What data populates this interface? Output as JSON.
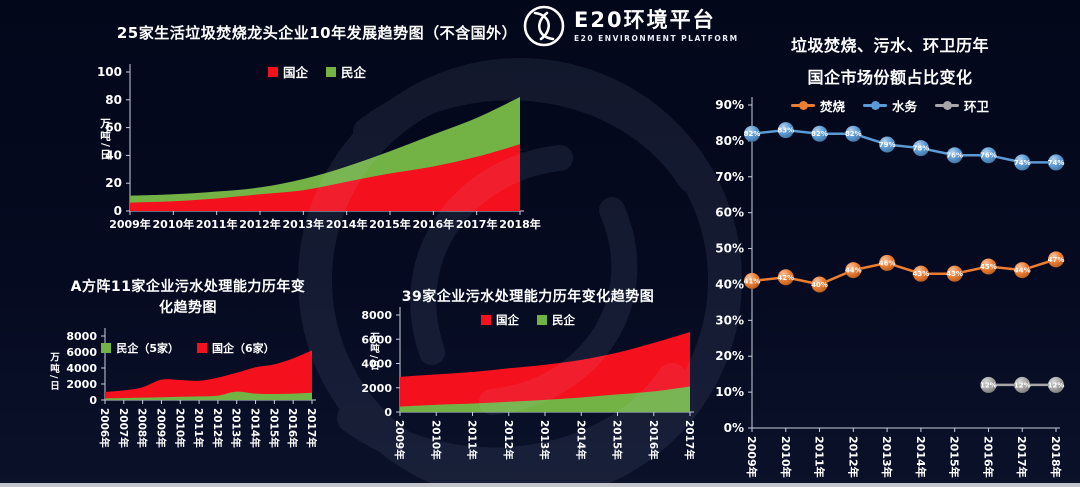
{
  "logo": {
    "name": "E20环境平台",
    "subtitle": "E20 ENVIRONMENT PLATFORM"
  },
  "chart_data": [
    {
      "type": "area",
      "title": "25家生活垃圾焚烧龙头企业10年发展趋势图（不含国外）",
      "ylabel": "万吨/日",
      "ylim": [
        0,
        100
      ],
      "ytick_step": 20,
      "grid": false,
      "legend_position": "top",
      "categories": [
        "2009年",
        "2010年",
        "2011年",
        "2012年",
        "2013年",
        "2014年",
        "2015年",
        "2016年",
        "2017年",
        "2018年"
      ],
      "series": [
        {
          "name": "国企",
          "color": "#f5101d",
          "values": [
            6,
            7,
            9,
            12,
            15,
            21,
            27,
            32,
            39,
            48
          ]
        },
        {
          "name": "民企",
          "color": "#73b245",
          "values": [
            5,
            5,
            5,
            5,
            8,
            11,
            16,
            23,
            28,
            34
          ]
        }
      ]
    },
    {
      "type": "line",
      "title_lines": [
        "垃圾焚烧、污水、环卫历年",
        "国企市场份额占比变化"
      ],
      "ylim": [
        0,
        90
      ],
      "ytick_step": 10,
      "ytick_suffix": "%",
      "label_suffix": "%",
      "grid": false,
      "legend_position": "top",
      "categories": [
        "2009年",
        "2010年",
        "2011年",
        "2012年",
        "2013年",
        "2014年",
        "2015年",
        "2016年",
        "2017年",
        "2018年"
      ],
      "series": [
        {
          "name": "焚烧",
          "color": "#ed7d31",
          "values": [
            41,
            42,
            40,
            44,
            46,
            43,
            43,
            45,
            44,
            47
          ]
        },
        {
          "name": "水务",
          "color": "#5b9bd5",
          "values": [
            82,
            83,
            82,
            82,
            79,
            78,
            76,
            76,
            74,
            74
          ]
        },
        {
          "name": "环卫",
          "color": "#a6a6a6",
          "values": [
            null,
            null,
            null,
            null,
            null,
            null,
            null,
            12,
            12,
            12
          ]
        }
      ]
    },
    {
      "type": "area",
      "title_lines": [
        "A方阵11家企业污水处理能力历年变",
        "化趋势图"
      ],
      "ylabel": "万吨/日",
      "ylim": [
        0,
        8000
      ],
      "ytick_step": 2000,
      "grid": false,
      "legend_position": "top",
      "categories": [
        "2006年",
        "2007年",
        "2008年",
        "2009年",
        "2010年",
        "2011年",
        "2012年",
        "2013年",
        "2014年",
        "2015年",
        "2016年",
        "2017年"
      ],
      "series": [
        {
          "name": "民企（5家）",
          "color": "#73b245",
          "values": [
            200,
            250,
            300,
            350,
            400,
            450,
            550,
            1050,
            800,
            750,
            800,
            900
          ]
        },
        {
          "name": "国企（6家）",
          "color": "#f5101d",
          "values": [
            800,
            950,
            1300,
            2200,
            2100,
            1950,
            2250,
            2350,
            3300,
            3700,
            4400,
            5300
          ]
        }
      ]
    },
    {
      "type": "area",
      "title": "39家企业污水处理能力历年变化趋势图",
      "ylabel": "万吨/日",
      "ylim": [
        0,
        8000
      ],
      "ytick_step": 2000,
      "grid": false,
      "legend_position": "top",
      "legend_order": [
        "国企",
        "民企"
      ],
      "categories": [
        "2009年",
        "2010年",
        "2011年",
        "2012年",
        "2013年",
        "2014年",
        "2015年",
        "2016年",
        "2017年"
      ],
      "series": [
        {
          "name": "民企",
          "color": "#73b245",
          "values": [
            450,
            600,
            700,
            850,
            1000,
            1200,
            1450,
            1700,
            2100
          ]
        },
        {
          "name": "国企",
          "color": "#f5101d",
          "values": [
            2450,
            2500,
            2600,
            2750,
            2900,
            3100,
            3450,
            4000,
            4500
          ]
        }
      ]
    }
  ]
}
